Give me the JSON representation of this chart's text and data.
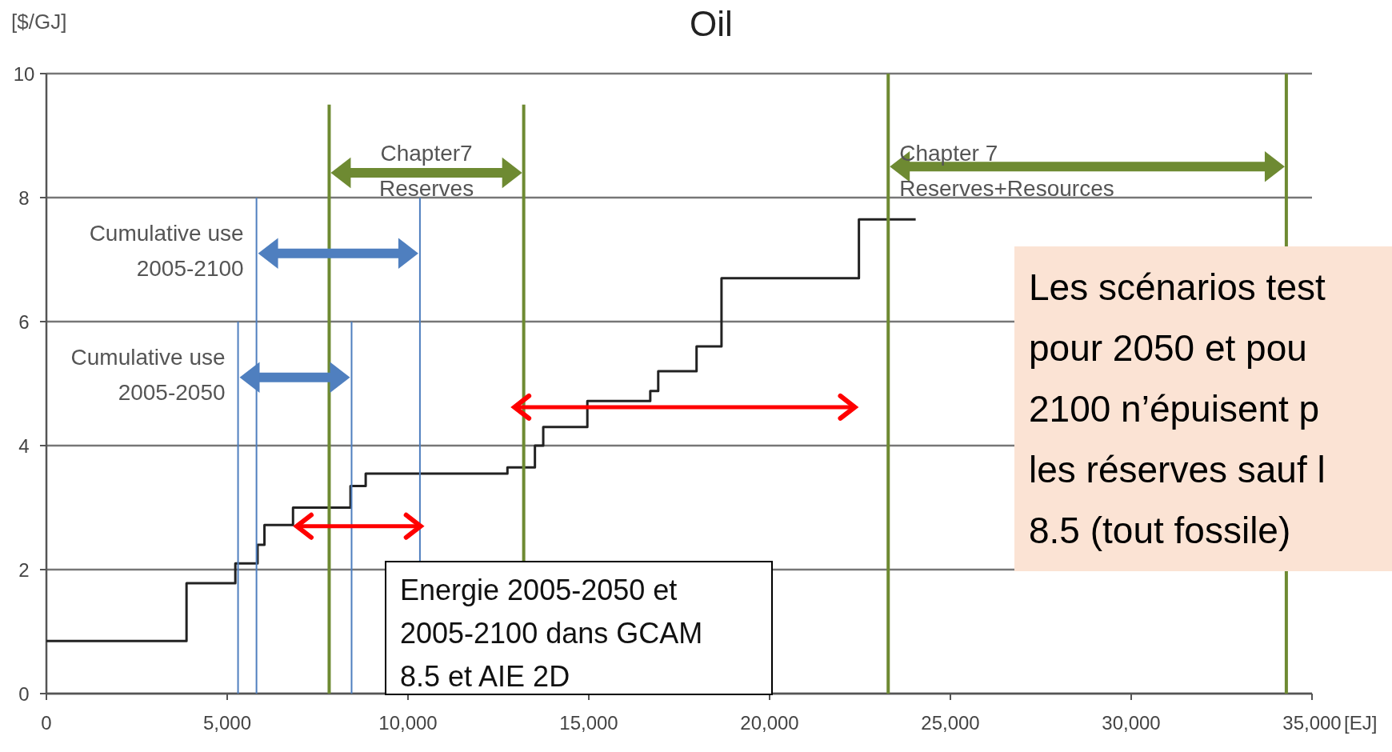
{
  "chart_data": {
    "type": "step",
    "title": "Oil",
    "ylabel": "[$/GJ]",
    "xlabel": "[EJ]",
    "x": [
      0,
      3875,
      5225,
      5840,
      6030,
      6820,
      8410,
      8830,
      12750,
      13510,
      13740,
      14960,
      16700,
      16920,
      17980,
      18670,
      22470,
      24040
    ],
    "series": [
      {
        "color": "#222222",
        "values": [
          0.85,
          1.78,
          2.1,
          2.4,
          2.72,
          3.0,
          3.35,
          3.55,
          3.65,
          4.0,
          4.3,
          4.72,
          4.88,
          5.2,
          5.6,
          6.7,
          7.65,
          7.65
        ]
      }
    ],
    "xlim": [
      0,
      35000
    ],
    "ylim": [
      0,
      10
    ],
    "xticks": [
      0,
      {
        "value": 5000,
        "label": "5,000"
      },
      {
        "value": 10000,
        "label": "10,000"
      },
      {
        "value": 15000,
        "label": "15,000"
      },
      {
        "value": 20000,
        "label": "20,000"
      },
      {
        "value": 25000,
        "label": "25,000"
      },
      {
        "value": 30000,
        "label": "30,000"
      },
      {
        "value": 35000,
        "label": "35,000"
      }
    ],
    "yticks": [
      0,
      2,
      4,
      6,
      8,
      10
    ],
    "grid": "y",
    "ref_lines": [
      {
        "axis": "x",
        "value": 7820,
        "label": "Chapter7\nReserves",
        "color": "#6e8a32"
      },
      {
        "axis": "x",
        "value": 13200,
        "color": "#6e8a32"
      },
      {
        "axis": "x",
        "value": 23280,
        "label": "Chapter 7\nReserves+Resources",
        "color": "#6e8a32"
      },
      {
        "axis": "x",
        "value": 34290,
        "color": "#6e8a32"
      },
      {
        "axis": "x",
        "value": 5810,
        "label": "Cumulative use\n2005-2100",
        "color": "#4f7fbf"
      },
      {
        "axis": "x",
        "value": 10330,
        "color": "#4f7fbf"
      },
      {
        "axis": "x",
        "value": 5300,
        "label": "Cumulative use\n2005-2050",
        "color": "#4f7fbf"
      },
      {
        "axis": "x",
        "value": 8440,
        "color": "#4f7fbf"
      }
    ],
    "annotations": [
      "Energie 2005-2050 et\n2005-2100 dans GCAM\n8.5  et AIE 2D",
      "Les scénarios test\npour 2050 et pou\n2100 n’épuisent p\nles réserves sauf l\n8.5 (tout fossile)"
    ]
  }
}
